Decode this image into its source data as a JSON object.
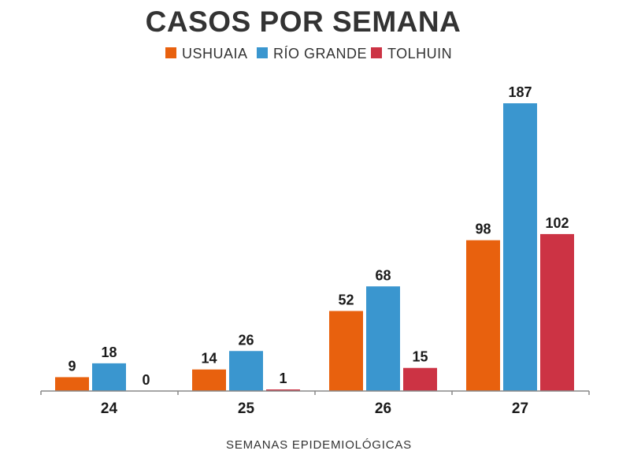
{
  "chart_data": {
    "type": "bar",
    "title": "CASOS POR SEMANA",
    "xlabel": "SEMANAS EPIDEMIOLÓGICAS",
    "ylabel": "",
    "categories": [
      "24",
      "25",
      "26",
      "27"
    ],
    "series": [
      {
        "name": "USHUAIA",
        "color": "#e8610e",
        "values": [
          9,
          14,
          52,
          98
        ]
      },
      {
        "name": "RÍO GRANDE",
        "color": "#3a96cf",
        "values": [
          18,
          26,
          68,
          187
        ]
      },
      {
        "name": "TOLHUIN",
        "color": "#cc3344",
        "values": [
          0,
          1,
          15,
          102
        ]
      }
    ],
    "ylim": [
      0,
      187
    ],
    "grid": false,
    "legend_position": "top-center",
    "data_labels": true,
    "axis_color": "#888888"
  }
}
